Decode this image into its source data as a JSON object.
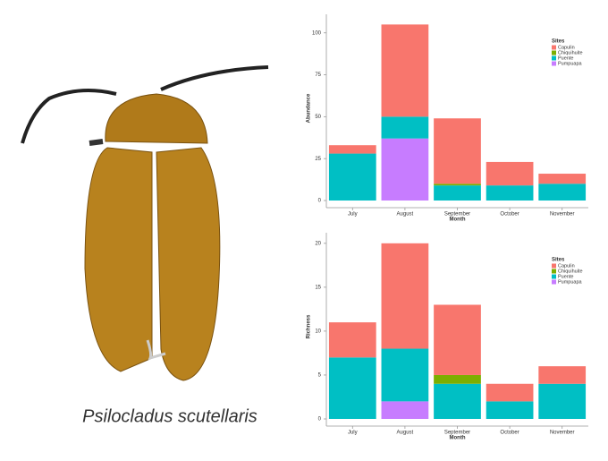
{
  "caption": "Psilocladus scutellaris",
  "chart_data": [
    {
      "type": "bar",
      "stacked": true,
      "xlabel": "Month",
      "ylabel": "Abundance",
      "legend_title": "Sites",
      "categories": [
        "July",
        "August",
        "September",
        "October",
        "November"
      ],
      "series": [
        {
          "name": "Capulin",
          "color": "#F8766D",
          "values": [
            5,
            55,
            39,
            14,
            6
          ]
        },
        {
          "name": "Chiquihuite",
          "color": "#7CAE00",
          "values": [
            0,
            0,
            1,
            0,
            0
          ]
        },
        {
          "name": "Puente",
          "color": "#00BFC4",
          "values": [
            28,
            13,
            9,
            9,
            10
          ]
        },
        {
          "name": "Pumpuapa",
          "color": "#C77CFF",
          "values": [
            0,
            37,
            0,
            0,
            0
          ]
        }
      ],
      "ylim": [
        0,
        110
      ],
      "yticks": [
        0,
        25,
        50,
        75,
        100
      ]
    },
    {
      "type": "bar",
      "stacked": true,
      "xlabel": "Month",
      "ylabel": "Richness",
      "legend_title": "Sites",
      "categories": [
        "July",
        "August",
        "September",
        "October",
        "November"
      ],
      "series": [
        {
          "name": "Capulin",
          "color": "#F8766D",
          "values": [
            4,
            12,
            8,
            2,
            2
          ]
        },
        {
          "name": "Chiquihuite",
          "color": "#7CAE00",
          "values": [
            0,
            0,
            1,
            0,
            0
          ]
        },
        {
          "name": "Puente",
          "color": "#00BFC4",
          "values": [
            7,
            6,
            4,
            2,
            4
          ]
        },
        {
          "name": "Pumpuapa",
          "color": "#C77CFF",
          "values": [
            0,
            2,
            0,
            0,
            0
          ]
        }
      ],
      "ylim": [
        0,
        21
      ],
      "yticks": [
        0,
        5,
        10,
        15,
        20
      ]
    }
  ]
}
